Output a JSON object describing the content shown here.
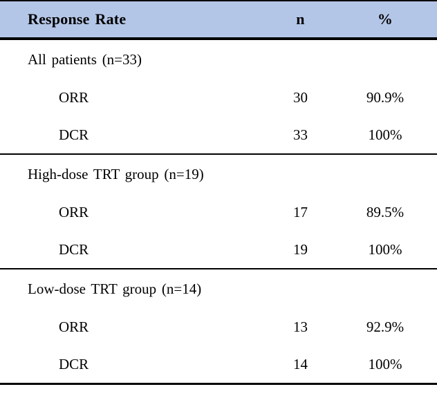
{
  "table": {
    "header": {
      "col1": "Response Rate",
      "col2": "n",
      "col3": "%"
    },
    "sections": [
      {
        "title": "All patients (n=33)",
        "rows": [
          {
            "label": "ORR",
            "n": "30",
            "pct": "90.9%"
          },
          {
            "label": "DCR",
            "n": "33",
            "pct": "100%"
          }
        ]
      },
      {
        "title": "High-dose TRT group (n=19)",
        "rows": [
          {
            "label": "ORR",
            "n": "17",
            "pct": "89.5%"
          },
          {
            "label": "DCR",
            "n": "19",
            "pct": "100%"
          }
        ]
      },
      {
        "title": "Low-dose TRT group (n=14)",
        "rows": [
          {
            "label": "ORR",
            "n": "13",
            "pct": "92.9%"
          },
          {
            "label": "DCR",
            "n": "14",
            "pct": "100%"
          }
        ]
      }
    ],
    "colors": {
      "header_bg": "#b4c6e7",
      "border": "#000000",
      "text": "#000000"
    }
  }
}
